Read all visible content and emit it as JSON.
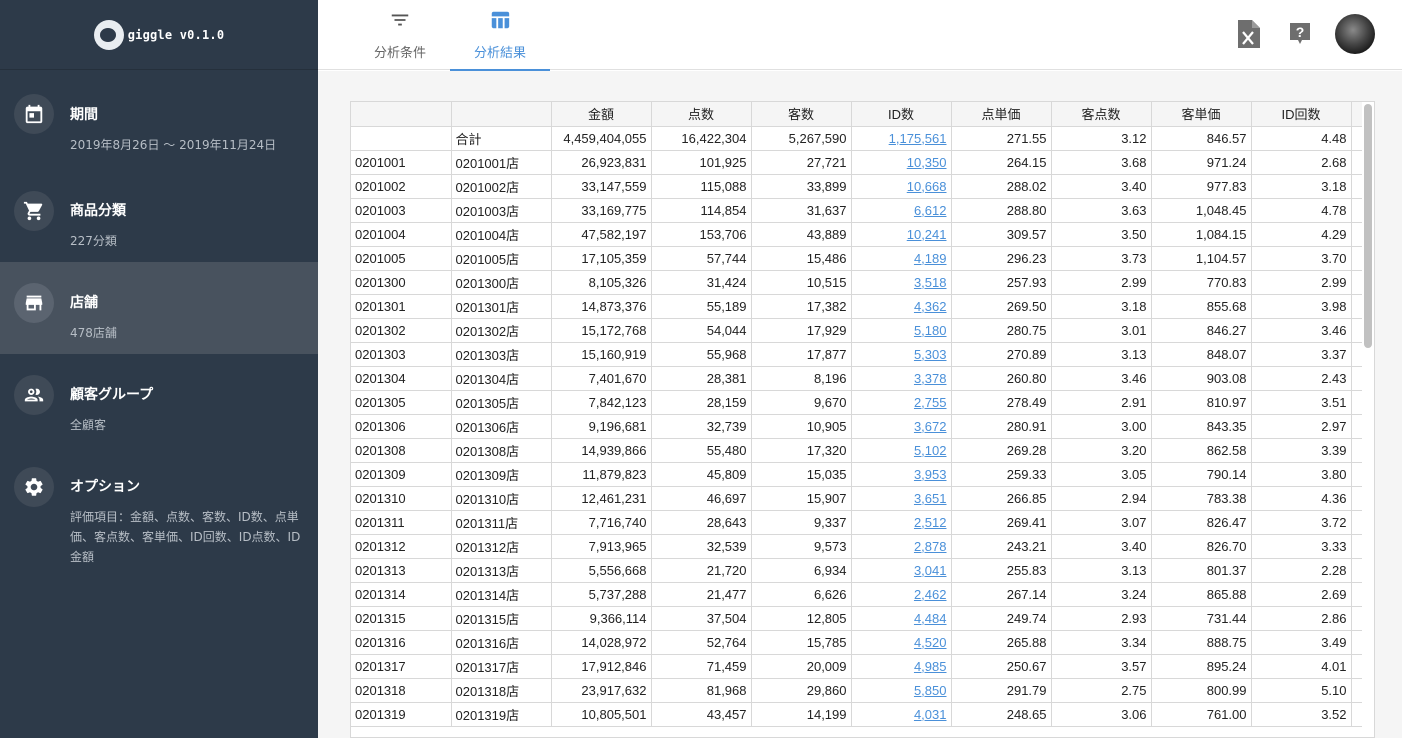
{
  "brand": {
    "name": "giggle v0.1.0"
  },
  "sidebar": {
    "items": [
      {
        "id": "period",
        "icon": "calendar-icon",
        "title": "期間",
        "sub": "2019年8月26日 ～ 2019年11月24日"
      },
      {
        "id": "category",
        "icon": "cart-icon",
        "title": "商品分類",
        "sub": "227分類"
      },
      {
        "id": "store",
        "icon": "store-icon",
        "title": "店舗",
        "sub": "478店舗"
      },
      {
        "id": "group",
        "icon": "people-icon",
        "title": "顧客グループ",
        "sub": "全顧客"
      },
      {
        "id": "option",
        "icon": "gear-icon",
        "title": "オプション",
        "sub": "評価項目：金額、点数、客数、ID数、点単価、客点数、客単価、ID回数、ID点数、ID金額"
      }
    ]
  },
  "header": {
    "tabs": [
      {
        "icon": "filter-icon",
        "label": "分析条件"
      },
      {
        "icon": "table-icon",
        "label": "分析結果"
      }
    ],
    "active_tab": "分析結果"
  },
  "colors": {
    "accent": "#4a90d9",
    "sidebar": "#2d3a49",
    "sidebar_active": "#48525e"
  },
  "table": {
    "headers": [
      "",
      "",
      "金額",
      "点数",
      "客数",
      "ID数",
      "点単価",
      "客点数",
      "客単価",
      "ID回数"
    ],
    "total": [
      "",
      "合計",
      "4,459,404,055",
      "16,422,304",
      "5,267,590",
      "1,175,561",
      "271.55",
      "3.12",
      "846.57",
      "4.48"
    ],
    "rows": [
      [
        "0201001",
        "0201001店",
        "26,923,831",
        "101,925",
        "27,721",
        "10,350",
        "264.15",
        "3.68",
        "971.24",
        "2.68"
      ],
      [
        "0201002",
        "0201002店",
        "33,147,559",
        "115,088",
        "33,899",
        "10,668",
        "288.02",
        "3.40",
        "977.83",
        "3.18"
      ],
      [
        "0201003",
        "0201003店",
        "33,169,775",
        "114,854",
        "31,637",
        "6,612",
        "288.80",
        "3.63",
        "1,048.45",
        "4.78"
      ],
      [
        "0201004",
        "0201004店",
        "47,582,197",
        "153,706",
        "43,889",
        "10,241",
        "309.57",
        "3.50",
        "1,084.15",
        "4.29"
      ],
      [
        "0201005",
        "0201005店",
        "17,105,359",
        "57,744",
        "15,486",
        "4,189",
        "296.23",
        "3.73",
        "1,104.57",
        "3.70"
      ],
      [
        "0201300",
        "0201300店",
        "8,105,326",
        "31,424",
        "10,515",
        "3,518",
        "257.93",
        "2.99",
        "770.83",
        "2.99"
      ],
      [
        "0201301",
        "0201301店",
        "14,873,376",
        "55,189",
        "17,382",
        "4,362",
        "269.50",
        "3.18",
        "855.68",
        "3.98"
      ],
      [
        "0201302",
        "0201302店",
        "15,172,768",
        "54,044",
        "17,929",
        "5,180",
        "280.75",
        "3.01",
        "846.27",
        "3.46"
      ],
      [
        "0201303",
        "0201303店",
        "15,160,919",
        "55,968",
        "17,877",
        "5,303",
        "270.89",
        "3.13",
        "848.07",
        "3.37"
      ],
      [
        "0201304",
        "0201304店",
        "7,401,670",
        "28,381",
        "8,196",
        "3,378",
        "260.80",
        "3.46",
        "903.08",
        "2.43"
      ],
      [
        "0201305",
        "0201305店",
        "7,842,123",
        "28,159",
        "9,670",
        "2,755",
        "278.49",
        "2.91",
        "810.97",
        "3.51"
      ],
      [
        "0201306",
        "0201306店",
        "9,196,681",
        "32,739",
        "10,905",
        "3,672",
        "280.91",
        "3.00",
        "843.35",
        "2.97"
      ],
      [
        "0201308",
        "0201308店",
        "14,939,866",
        "55,480",
        "17,320",
        "5,102",
        "269.28",
        "3.20",
        "862.58",
        "3.39"
      ],
      [
        "0201309",
        "0201309店",
        "11,879,823",
        "45,809",
        "15,035",
        "3,953",
        "259.33",
        "3.05",
        "790.14",
        "3.80"
      ],
      [
        "0201310",
        "0201310店",
        "12,461,231",
        "46,697",
        "15,907",
        "3,651",
        "266.85",
        "2.94",
        "783.38",
        "4.36"
      ],
      [
        "0201311",
        "0201311店",
        "7,716,740",
        "28,643",
        "9,337",
        "2,512",
        "269.41",
        "3.07",
        "826.47",
        "3.72"
      ],
      [
        "0201312",
        "0201312店",
        "7,913,965",
        "32,539",
        "9,573",
        "2,878",
        "243.21",
        "3.40",
        "826.70",
        "3.33"
      ],
      [
        "0201313",
        "0201313店",
        "5,556,668",
        "21,720",
        "6,934",
        "3,041",
        "255.83",
        "3.13",
        "801.37",
        "2.28"
      ],
      [
        "0201314",
        "0201314店",
        "5,737,288",
        "21,477",
        "6,626",
        "2,462",
        "267.14",
        "3.24",
        "865.88",
        "2.69"
      ],
      [
        "0201315",
        "0201315店",
        "9,366,114",
        "37,504",
        "12,805",
        "4,484",
        "249.74",
        "2.93",
        "731.44",
        "2.86"
      ],
      [
        "0201316",
        "0201316店",
        "14,028,972",
        "52,764",
        "15,785",
        "4,520",
        "265.88",
        "3.34",
        "888.75",
        "3.49"
      ],
      [
        "0201317",
        "0201317店",
        "17,912,846",
        "71,459",
        "20,009",
        "4,985",
        "250.67",
        "3.57",
        "895.24",
        "4.01"
      ],
      [
        "0201318",
        "0201318店",
        "23,917,632",
        "81,968",
        "29,860",
        "5,850",
        "291.79",
        "2.75",
        "800.99",
        "5.10"
      ],
      [
        "0201319",
        "0201319店",
        "10,805,501",
        "43,457",
        "14,199",
        "4,031",
        "248.65",
        "3.06",
        "761.00",
        "3.52"
      ]
    ]
  }
}
